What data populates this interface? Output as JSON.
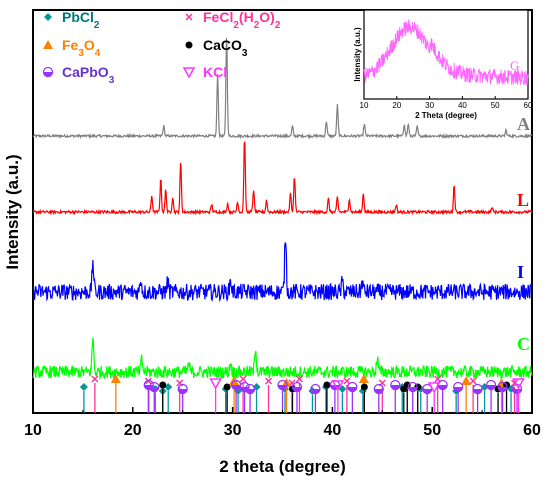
{
  "chart_data": {
    "type": "line",
    "xlabel": "2 theta (degree)",
    "ylabel": "Intensity (a.u.)",
    "xlim": [
      10,
      60
    ],
    "xticks": [
      "10",
      "20",
      "30",
      "40",
      "50",
      "60"
    ],
    "grid": false,
    "series": [
      {
        "name": "A",
        "color": "#808080",
        "noise": 0.012,
        "peaks": [
          [
            23.1,
            0.1
          ],
          [
            28.5,
            0.62
          ],
          [
            29.4,
            1.0
          ],
          [
            36.0,
            0.1
          ],
          [
            39.4,
            0.15
          ],
          [
            40.5,
            0.31
          ],
          [
            43.2,
            0.12
          ],
          [
            47.2,
            0.12
          ],
          [
            47.6,
            0.12
          ],
          [
            48.5,
            0.1
          ],
          [
            57.4,
            0.06
          ]
        ]
      },
      {
        "name": "L",
        "color": "#ff0000",
        "noise": 0.018,
        "peaks": [
          [
            21.9,
            0.22
          ],
          [
            22.8,
            0.45
          ],
          [
            23.3,
            0.3
          ],
          [
            24.0,
            0.2
          ],
          [
            24.8,
            0.68
          ],
          [
            27.9,
            0.1
          ],
          [
            29.5,
            0.12
          ],
          [
            30.5,
            0.14
          ],
          [
            31.2,
            1.0
          ],
          [
            32.1,
            0.3
          ],
          [
            33.4,
            0.16
          ],
          [
            35.8,
            0.25
          ],
          [
            36.2,
            0.48
          ],
          [
            39.6,
            0.18
          ],
          [
            40.5,
            0.2
          ],
          [
            41.7,
            0.18
          ],
          [
            43.1,
            0.25
          ],
          [
            46.4,
            0.1
          ],
          [
            52.2,
            0.36
          ],
          [
            56.0,
            0.06
          ]
        ]
      },
      {
        "name": "I",
        "color": "#0000ff",
        "noise": 0.12,
        "peaks": [
          [
            16.0,
            0.45
          ],
          [
            20.8,
            0.2
          ],
          [
            23.5,
            0.15
          ],
          [
            29.8,
            0.18
          ],
          [
            35.3,
            0.85
          ],
          [
            41.0,
            0.15
          ],
          [
            43.0,
            0.15
          ]
        ]
      },
      {
        "name": "C",
        "color": "#00ff00",
        "noise": 0.1,
        "peaks": [
          [
            16.0,
            0.55
          ],
          [
            20.9,
            0.2
          ],
          [
            25.6,
            0.12
          ],
          [
            29.8,
            0.15
          ],
          [
            32.3,
            0.4
          ],
          [
            44.5,
            0.22
          ]
        ]
      }
    ],
    "inset": {
      "label": "G",
      "color": "#ff66ff",
      "xlabel": "2 Theta (degree)",
      "ylabel": "Intensity (a.u.)",
      "xlim": [
        10,
        60
      ],
      "xticks": [
        "10",
        "20",
        "30",
        "40",
        "50",
        "60"
      ],
      "hump_center": 24,
      "hump_width": 8
    },
    "legend": {
      "placement": "top-left",
      "entries": [
        {
          "symbol": "diamond",
          "color": "#009999",
          "text_color": "#007777",
          "label": "PbCl",
          "sub": "2",
          "tail": ""
        },
        {
          "symbol": "cross",
          "color": "#ff3399",
          "text_color": "#ff3399",
          "label": "FeCl",
          "sub": "2",
          "tail": "(H",
          "sub2": "2",
          "tail2": "O)",
          "sub3": "2"
        },
        {
          "symbol": "triangle-up",
          "color": "#ff8000",
          "text_color": "#ff8000",
          "label": "Fe",
          "sub": "3",
          "tail": "O",
          "sub2": "4"
        },
        {
          "symbol": "circle",
          "color": "#000000",
          "text_color": "#000000",
          "label": "CaCO",
          "sub": "3",
          "tail": ""
        },
        {
          "symbol": "half-circle",
          "color": "#9933ff",
          "text_color": "#6633cc",
          "label": "CaPbO",
          "sub": "3",
          "tail": ""
        },
        {
          "symbol": "triangle-down",
          "color": "#ff33ff",
          "text_color": "#ff33ff",
          "label": "KCl",
          "sub": "",
          "tail": ""
        }
      ]
    },
    "reference_sticks": [
      {
        "phase": "PbCl2",
        "symbol": "diamond",
        "color": "#009999",
        "positions": [
          15.1,
          22.2,
          23.0,
          23.5,
          29.3,
          30.5,
          32.4,
          35.2,
          38.0,
          39.3,
          41.0,
          43.0,
          47.0,
          48.8,
          52.4,
          55.2,
          57.9
        ]
      },
      {
        "phase": "FeCl2(H2O)2",
        "symbol": "cross",
        "color": "#ff3399",
        "positions": [
          16.2,
          21.5,
          24.7,
          31.0,
          33.6,
          35.9,
          36.7,
          41.4,
          45.0,
          50.5,
          54.1,
          58.2
        ]
      },
      {
        "phase": "Fe3O4",
        "symbol": "triangle-up",
        "color": "#ff8000",
        "positions": [
          18.3,
          30.1,
          35.4,
          43.1,
          53.4,
          56.9
        ]
      },
      {
        "phase": "CaCO3",
        "symbol": "circle",
        "color": "#000000",
        "positions": [
          23.0,
          29.4,
          36.0,
          39.4,
          43.2,
          47.1,
          47.5,
          48.5,
          56.6,
          57.4
        ]
      },
      {
        "phase": "CaPbO3",
        "symbol": "half-circle",
        "color": "#9933ff",
        "positions": [
          21.6,
          22.1,
          25.0,
          30.3,
          31.2,
          31.7,
          35.0,
          36.4,
          38.3,
          40.2,
          42.0,
          44.6,
          46.3,
          48.0,
          49.5,
          51.0,
          52.6,
          54.5,
          55.9,
          57.0,
          58.5
        ]
      },
      {
        "phase": "KCl",
        "symbol": "triangle-down",
        "color": "#ff33ff",
        "positions": [
          28.3,
          40.5,
          50.2,
          58.6
        ]
      }
    ]
  }
}
